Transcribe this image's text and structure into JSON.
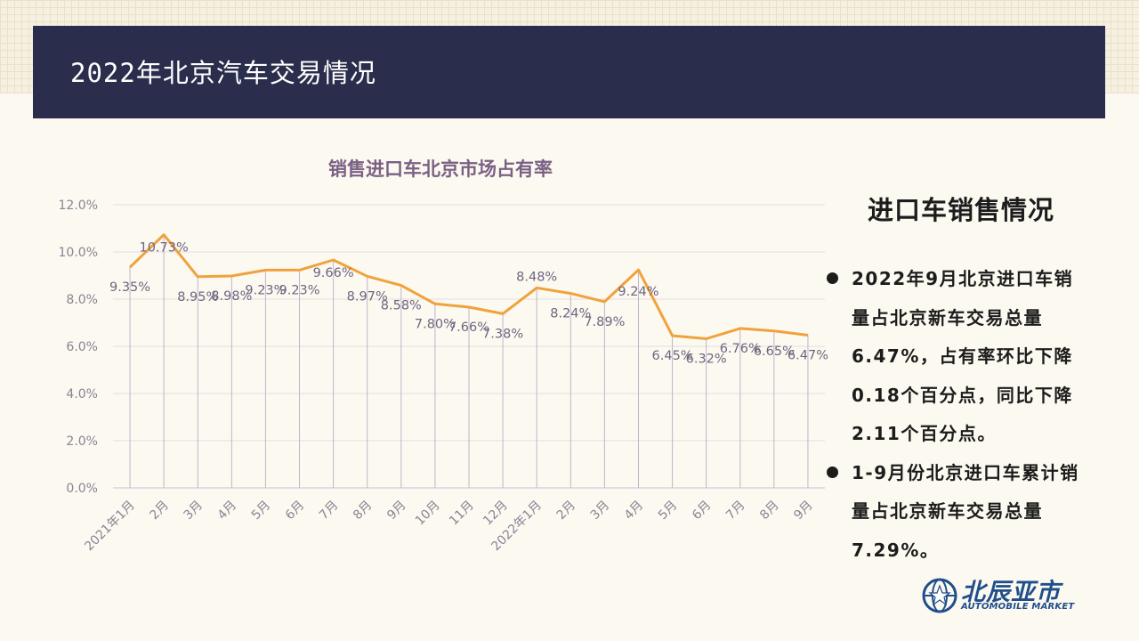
{
  "header": {
    "title": "2022年北京汽车交易情况"
  },
  "panel": {
    "title": "进口车销售情况",
    "bullets": [
      "2022年9月北京进口车销量占北京新车交易总量6.47%，占有率环比下降0.18个百分点，同比下降2.11个百分点。",
      "1-9月份北京进口车累计销量占北京新车交易总量7.29%。"
    ]
  },
  "logo": {
    "name_cn": "北辰亚市",
    "name_en": "AUTOMOBILE MARKET",
    "emblem_icon": "globe-star-icon",
    "color": "#1f4e8c"
  },
  "chart_data": {
    "type": "line",
    "title": "销售进口车北京市场占有率",
    "title_color": "#7a6184",
    "line_color": "#f0a23c",
    "categories": [
      "2021年1月",
      "2月",
      "3月",
      "4月",
      "5月",
      "6月",
      "7月",
      "8月",
      "9月",
      "10月",
      "11月",
      "12月",
      "2022年1月",
      "2月",
      "3月",
      "4月",
      "5月",
      "6月",
      "7月",
      "8月",
      "9月"
    ],
    "values": [
      9.35,
      10.73,
      8.95,
      8.98,
      9.23,
      9.23,
      9.66,
      8.97,
      8.58,
      7.8,
      7.66,
      7.38,
      8.48,
      8.24,
      7.89,
      9.24,
      6.45,
      6.32,
      6.76,
      6.65,
      6.47
    ],
    "data_labels": [
      "9.35%",
      "10.73%",
      "8.95%",
      "8.98%",
      "9.23%",
      "9.23%",
      "9.66%",
      "8.97%",
      "8.58%",
      "7.80%",
      "7.66%",
      "7.38%",
      "8.48%",
      "8.24%",
      "7.89%",
      "9.24%",
      "6.45%",
      "6.32%",
      "6.76%",
      "6.65%",
      "6.47%"
    ],
    "y_ticks": [
      "0.0%",
      "2.0%",
      "4.0%",
      "6.0%",
      "8.0%",
      "10.0%",
      "12.0%"
    ],
    "ylim": [
      0,
      12
    ],
    "drop_lines": true,
    "grid": true
  }
}
